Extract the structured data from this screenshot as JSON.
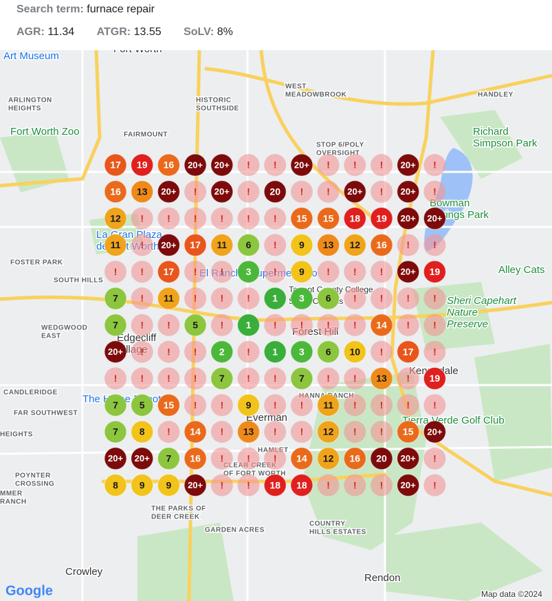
{
  "header": {
    "search_label": "Search term:",
    "search_term": "furnace repair",
    "metrics": [
      {
        "label": "AGR:",
        "value": "11.34"
      },
      {
        "label": "ATGR:",
        "value": "13.55"
      },
      {
        "label": "SoLV:",
        "value": "8%"
      }
    ]
  },
  "marker_colors": {
    "1": "#3aae3a",
    "2": "#4cb83a",
    "3": "#4cb83a",
    "5": "#8cc63f",
    "6": "#8cc63f",
    "7": "#8cc63f",
    "8": "#f2c31b",
    "9": "#f2c31b",
    "10": "#f2c31b",
    "11": "#f0a41c",
    "12": "#f0a41c",
    "13": "#ef8a1a",
    "14": "#ea6a1c",
    "15": "#ea6a1c",
    "16": "#ea6a1c",
    "17": "#e8561c",
    "18": "#e0201e",
    "19": "#e0201e",
    "20": "#7e0b0b",
    "20+": "#7e0b0b",
    "!": "rgba(242,150,150,0.6)"
  },
  "grid": {
    "rows": [
      [
        "17",
        "19",
        "16",
        "20+",
        "20+",
        "!",
        "!",
        "20+",
        "!",
        "!",
        "!",
        "20+",
        "!"
      ],
      [
        "16",
        "13",
        "20+",
        "!",
        "20+",
        "!",
        "20",
        "!",
        "!",
        "20+",
        "!",
        "20+",
        "!"
      ],
      [
        "12",
        "!",
        "!",
        "!",
        "!",
        "!",
        "!",
        "15",
        "15",
        "18",
        "19",
        "20+",
        "20+"
      ],
      [
        "11",
        "!",
        "20+",
        "17",
        "11",
        "6",
        "!",
        "9",
        "13",
        "12",
        "16",
        "!",
        "!"
      ],
      [
        "!",
        "!",
        "17",
        "!",
        "!",
        "3",
        "!",
        "9",
        "!",
        "!",
        "!",
        "20+",
        "19"
      ],
      [
        "7",
        "!",
        "11",
        "!",
        "!",
        "!",
        "1",
        "3",
        "6",
        "!",
        "!",
        "!",
        "!"
      ],
      [
        "7",
        "!",
        "!",
        "5",
        "!",
        "1",
        "!",
        "!",
        "!",
        "!",
        "14",
        "!",
        "!"
      ],
      [
        "20+",
        "!",
        "!",
        "!",
        "2",
        "!",
        "1",
        "3",
        "6",
        "10",
        "!",
        "17",
        "!"
      ],
      [
        "!",
        "!",
        "!",
        "!",
        "7",
        "!",
        "!",
        "7",
        "!",
        "!",
        "13",
        "!",
        "19"
      ],
      [
        "7",
        "5",
        "15",
        "!",
        "!",
        "9",
        "!",
        "!",
        "11",
        "!",
        "!",
        "!",
        "!"
      ],
      [
        "7",
        "8",
        "!",
        "14",
        "!",
        "13",
        "!",
        "!",
        "12",
        "!",
        "!",
        "15",
        "20+"
      ],
      [
        "20+",
        "20+",
        "7",
        "16",
        "!",
        "!",
        "!",
        "14",
        "12",
        "16",
        "20",
        "20+",
        "!"
      ],
      [
        "8",
        "9",
        "9",
        "20+",
        "!",
        "!",
        "18",
        "18",
        "!",
        "!",
        "!",
        "20+",
        "!"
      ]
    ]
  },
  "map_labels": [
    {
      "lines": [
        "Art Museum"
      ]
    },
    {
      "lines": [
        "Fort Worth"
      ]
    },
    {
      "lines": [
        "ARLINGTON",
        "HEIGHTS"
      ]
    },
    {
      "lines": [
        "HISTORIC",
        "SOUTHSIDE"
      ]
    },
    {
      "lines": [
        "WEST",
        "MEADOWBROOK"
      ]
    },
    {
      "lines": [
        "HANDLEY"
      ]
    },
    {
      "lines": [
        "Fort Worth Zoo"
      ]
    },
    {
      "lines": [
        "FAIRMOUNT"
      ]
    },
    {
      "lines": [
        "STOP 6/POLY",
        "OVERSIGHT"
      ]
    },
    {
      "lines": [
        "Richard",
        "Simpson Park"
      ]
    },
    {
      "lines": [
        "Bowman",
        "Springs Park"
      ]
    },
    {
      "lines": [
        "La Gran Plaza",
        "de Fort Worth"
      ]
    },
    {
      "lines": [
        "FOSTER PARK"
      ]
    },
    {
      "lines": [
        "SOUTH HILLS"
      ]
    },
    {
      "lines": [
        "El Rancho Supermercado"
      ]
    },
    {
      "lines": [
        "Alley Cats"
      ]
    },
    {
      "lines": [
        "Tarrant County College",
        "South Campus"
      ]
    },
    {
      "lines": [
        "Sheri Capehart",
        "Nature",
        "Preserve"
      ]
    },
    {
      "lines": [
        "WEDGWOOD",
        "EAST"
      ]
    },
    {
      "lines": [
        "Edgecliff",
        "Village"
      ]
    },
    {
      "lines": [
        "Forest Hill"
      ]
    },
    {
      "lines": [
        "Kennedale"
      ]
    },
    {
      "lines": [
        "CANDLERIDGE"
      ]
    },
    {
      "lines": [
        "The Home Depot"
      ]
    },
    {
      "lines": [
        "FAR SOUTHWEST"
      ]
    },
    {
      "lines": [
        "HANNA RANCH"
      ]
    },
    {
      "lines": [
        "Everman"
      ]
    },
    {
      "lines": [
        "Tierra Verde Golf Club"
      ]
    },
    {
      "lines": [
        "HEIGHTS"
      ]
    },
    {
      "lines": [
        "HAMLET"
      ]
    },
    {
      "lines": [
        "CLEAR CREEK",
        "OF FORT WORTH"
      ]
    },
    {
      "lines": [
        "POYNTER",
        "CROSSING"
      ]
    },
    {
      "lines": [
        "MMER",
        "RANCH"
      ]
    },
    {
      "lines": [
        "THE PARKS OF",
        "DEER CREEK"
      ]
    },
    {
      "lines": [
        "GARDEN ACRES"
      ]
    },
    {
      "lines": [
        "COUNTRY",
        "HILLS ESTATES"
      ]
    },
    {
      "lines": [
        "Crowley"
      ]
    },
    {
      "lines": [
        "Rendon"
      ]
    },
    {
      "lines": [
        "Google"
      ]
    },
    {
      "lines": [
        "Map data ©2024"
      ]
    }
  ]
}
